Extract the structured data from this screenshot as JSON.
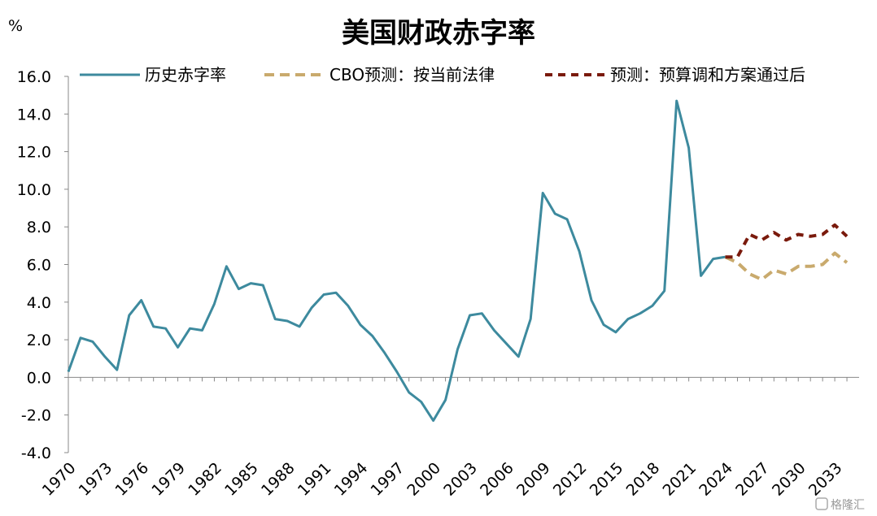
{
  "chart_data": {
    "type": "line",
    "title": "美国财政赤字率",
    "ylabel": "%",
    "ylim": [
      -4,
      16
    ],
    "yticks": [
      "16.0",
      "14.0",
      "12.0",
      "10.0",
      "8.0",
      "6.0",
      "4.0",
      "2.0",
      "0.0",
      "-2.0",
      "-4.0"
    ],
    "ytick_values": [
      16,
      14,
      12,
      10,
      8,
      6,
      4,
      2,
      0,
      -2,
      -4
    ],
    "xlim": [
      1970,
      2035
    ],
    "xticks": [
      "1970",
      "1973",
      "1976",
      "1979",
      "1982",
      "1985",
      "1988",
      "1991",
      "1994",
      "1997",
      "2000",
      "2003",
      "2006",
      "2009",
      "2012",
      "2015",
      "2018",
      "2021",
      "2024",
      "2027",
      "2030",
      "2033"
    ],
    "grid": false,
    "legend": "top",
    "series": [
      {
        "name": "历史赤字率",
        "color": "#3d8a9e",
        "style": "solid",
        "x": [
          1970,
          1971,
          1972,
          1973,
          1974,
          1975,
          1976,
          1977,
          1978,
          1979,
          1980,
          1981,
          1982,
          1983,
          1984,
          1985,
          1986,
          1987,
          1988,
          1989,
          1990,
          1991,
          1992,
          1993,
          1994,
          1995,
          1996,
          1997,
          1998,
          1999,
          2000,
          2001,
          2002,
          2003,
          2004,
          2005,
          2006,
          2007,
          2008,
          2009,
          2010,
          2011,
          2012,
          2013,
          2014,
          2015,
          2016,
          2017,
          2018,
          2019,
          2020,
          2021,
          2022,
          2023,
          2024
        ],
        "values": [
          0.3,
          2.1,
          1.9,
          1.1,
          0.4,
          3.3,
          4.1,
          2.7,
          2.6,
          1.6,
          2.6,
          2.5,
          3.9,
          5.9,
          4.7,
          5.0,
          4.9,
          3.1,
          3.0,
          2.7,
          3.7,
          4.4,
          4.5,
          3.8,
          2.8,
          2.2,
          1.3,
          0.3,
          -0.8,
          -1.3,
          -2.3,
          -1.2,
          1.5,
          3.3,
          3.4,
          2.5,
          1.8,
          1.1,
          3.1,
          9.8,
          8.7,
          8.4,
          6.7,
          4.1,
          2.8,
          2.4,
          3.1,
          3.4,
          3.8,
          4.6,
          14.7,
          12.2,
          5.4,
          6.3,
          6.4
        ]
      },
      {
        "name": "CBO预测：按当前法律",
        "color": "#c9aa6d",
        "style": "dashed",
        "x": [
          2024,
          2025,
          2026,
          2027,
          2028,
          2029,
          2030,
          2031,
          2032,
          2033,
          2034
        ],
        "values": [
          6.4,
          6.1,
          5.5,
          5.2,
          5.7,
          5.5,
          5.9,
          5.9,
          6.0,
          6.6,
          6.1
        ]
      },
      {
        "name": "预测：预算调和方案通过后",
        "color": "#7a1a0c",
        "style": "dotted",
        "x": [
          2024,
          2025,
          2026,
          2027,
          2028,
          2029,
          2030,
          2031,
          2032,
          2033,
          2034
        ],
        "values": [
          6.4,
          6.4,
          7.6,
          7.3,
          7.7,
          7.3,
          7.6,
          7.5,
          7.6,
          8.1,
          7.5
        ]
      }
    ]
  },
  "watermark": "格隆汇"
}
